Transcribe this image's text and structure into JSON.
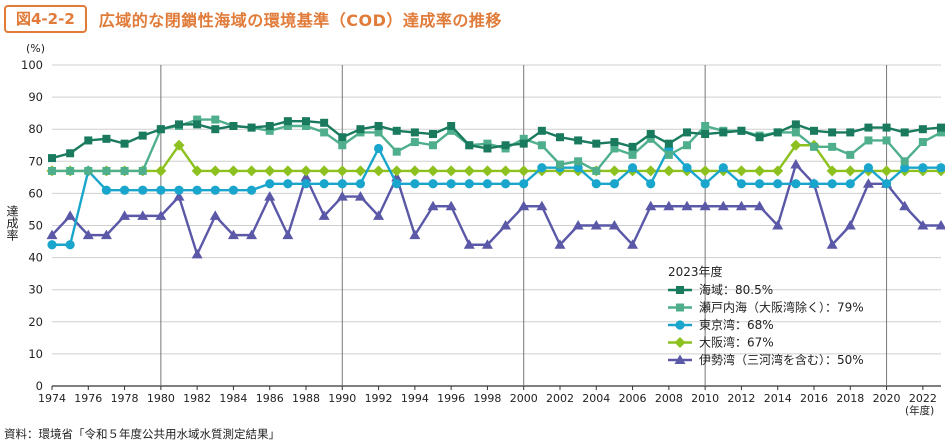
{
  "figure": {
    "label": "図4-2-2",
    "title": "広域的な閉鎖性海域の環境基準（COD）達成率の推移",
    "source": "資料：環境省「令和５年度公共用水域水質測定結果」"
  },
  "chart_data": {
    "type": "line",
    "ylabel": "達成率",
    "y_unit": "(%)",
    "x_unit": "(年度)",
    "ylim": [
      0,
      100
    ],
    "yticks": [
      0,
      10,
      20,
      30,
      40,
      50,
      60,
      70,
      80,
      90,
      100
    ],
    "x": [
      1974,
      1975,
      1976,
      1977,
      1978,
      1979,
      1980,
      1981,
      1982,
      1983,
      1984,
      1985,
      1986,
      1987,
      1988,
      1989,
      1990,
      1991,
      1992,
      1993,
      1994,
      1995,
      1996,
      1997,
      1998,
      1999,
      2000,
      2001,
      2002,
      2003,
      2004,
      2005,
      2006,
      2007,
      2008,
      2009,
      2010,
      2011,
      2012,
      2013,
      2014,
      2015,
      2016,
      2017,
      2018,
      2019,
      2020,
      2021,
      2022,
      2023
    ],
    "xticks": [
      1974,
      1976,
      1978,
      1980,
      1982,
      1984,
      1986,
      1988,
      1990,
      1992,
      1994,
      1996,
      1998,
      2000,
      2002,
      2004,
      2006,
      2008,
      2010,
      2012,
      2014,
      2016,
      2018,
      2020,
      2022
    ],
    "decade_lines": [
      1980,
      1990,
      2000,
      2010,
      2020
    ],
    "grid": true,
    "legend_title": "2023年度",
    "legend_position": "bottom-right",
    "series": [
      {
        "name": "海域：80.5%",
        "color": "#1a7a5e",
        "marker": "square",
        "values": [
          71,
          72.5,
          76.5,
          77,
          75.5,
          78,
          80,
          81.5,
          81.5,
          80,
          81,
          80.5,
          81,
          82.5,
          82.5,
          82,
          77.5,
          80,
          81,
          79.5,
          79,
          78.5,
          81,
          75,
          74,
          75,
          75.5,
          79.5,
          77.5,
          76.5,
          75.5,
          76,
          74.5,
          78.5,
          75.5,
          79,
          78.5,
          79,
          79.5,
          77.5,
          79,
          81.5,
          79.5,
          79,
          79,
          80.5,
          80.5,
          79,
          80,
          80.5
        ]
      },
      {
        "name": "瀬戸内海（大阪湾除く）：79%",
        "color": "#4faf8c",
        "marker": "square",
        "values": [
          67,
          67,
          67,
          67,
          67,
          67,
          80,
          81,
          83,
          83,
          81,
          80.5,
          79.5,
          81,
          81,
          79,
          75,
          79,
          79,
          73,
          76,
          75,
          79.5,
          75,
          75.5,
          74,
          77,
          75,
          69,
          70,
          67,
          74,
          72,
          77,
          72,
          75,
          81,
          79.5,
          79.5,
          78,
          79,
          79,
          74.5,
          74.5,
          72,
          76.5,
          76.5,
          70,
          76,
          79
        ]
      },
      {
        "name": "東京湾：68%",
        "color": "#1aa6cc",
        "marker": "circle",
        "values": [
          44,
          44,
          67,
          61,
          61,
          61,
          61,
          61,
          61,
          61,
          61,
          61,
          63,
          63,
          63,
          63,
          63,
          63,
          74,
          63,
          63,
          63,
          63,
          63,
          63,
          63,
          63,
          68,
          68,
          68,
          63,
          63,
          68,
          63,
          74,
          68,
          63,
          68,
          63,
          63,
          63,
          63,
          63,
          63,
          63,
          68,
          63,
          68,
          68,
          68
        ]
      },
      {
        "name": "大阪湾：67%",
        "color": "#8cc11f",
        "marker": "diamond",
        "values": [
          67,
          67,
          67,
          67,
          67,
          67,
          67,
          75,
          67,
          67,
          67,
          67,
          67,
          67,
          67,
          67,
          67,
          67,
          67,
          67,
          67,
          67,
          67,
          67,
          67,
          67,
          67,
          67,
          67,
          67,
          67,
          67,
          67,
          67,
          67,
          67,
          67,
          67,
          67,
          67,
          67,
          75,
          75,
          67,
          67,
          67,
          67,
          67,
          67,
          67
        ]
      },
      {
        "name": "伊勢湾（三河湾を含む）：50%",
        "color": "#5b58a8",
        "marker": "triangle",
        "values": [
          47,
          53,
          47,
          47,
          53,
          53,
          53,
          59,
          41,
          53,
          47,
          47,
          59,
          47,
          65,
          53,
          59,
          59,
          53,
          65,
          47,
          56,
          56,
          44,
          44,
          50,
          56,
          56,
          44,
          50,
          50,
          50,
          44,
          56,
          56,
          56,
          56,
          56,
          56,
          56,
          50,
          69,
          63,
          44,
          50,
          63,
          63,
          56,
          50,
          50
        ]
      }
    ]
  }
}
